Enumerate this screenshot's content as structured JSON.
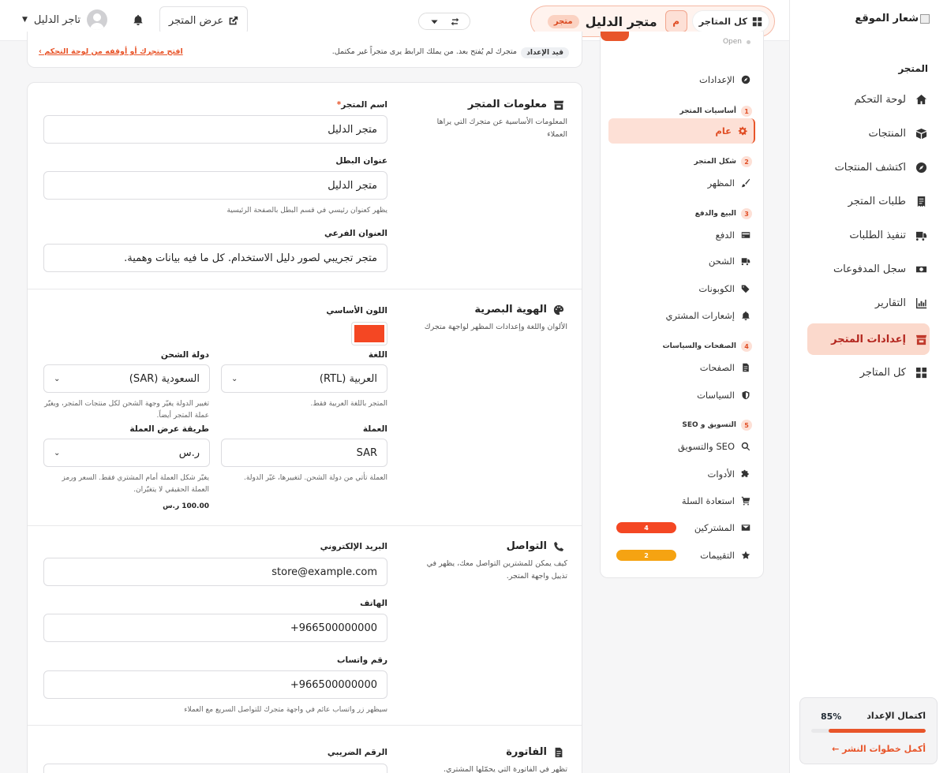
{
  "sidebar": {
    "logo_text": "شعار الموقع",
    "section": "المتجر",
    "items": [
      {
        "label": "لوحة التحكم",
        "icon": "home-icon"
      },
      {
        "label": "المنتجات",
        "icon": "box-icon"
      },
      {
        "label": "اكتشف المنتجات",
        "icon": "compass-icon"
      },
      {
        "label": "طلبات المتجر",
        "icon": "receipt-icon"
      },
      {
        "label": "تنفيذ الطلبات",
        "icon": "truck-icon"
      },
      {
        "label": "سجل المدفوعات",
        "icon": "money-icon"
      },
      {
        "label": "التقارير",
        "icon": "chart-icon"
      },
      {
        "label": "إعدادات المتجر",
        "icon": "store-icon",
        "active": true
      },
      {
        "label": "كل المتاجر",
        "icon": "grid-icon"
      }
    ],
    "progress": {
      "title": "اكتمال الإعداد",
      "percent_label": "85%",
      "value": 0.85,
      "link": "أكمل خطوات النشر ←"
    }
  },
  "topbar": {
    "all_stores": "كل المتاجر",
    "avatar_letter": "م",
    "store_name": "متجر الدليل",
    "store_badge": "متجر",
    "view_store": "عرض المتجر",
    "user_name": "تاجر الدليل"
  },
  "alert": {
    "badge": "قيد الإعداد",
    "text": "متجرك لم يُفتح بعد. من يملك الرابط يرى متجراً غير مكتمل.",
    "link": "افتح متجرك أو أوقفه من لوحة التحكم ›"
  },
  "settings_nav": {
    "status": "Open",
    "settings_label": "الإعدادات",
    "groups": [
      {
        "num": "1",
        "title": "أساسيات المتجر"
      },
      {
        "num": "2",
        "title": "شكل المتجر"
      },
      {
        "num": "3",
        "title": "البيع والدفع"
      },
      {
        "num": "4",
        "title": "الصفحات والسياسات"
      },
      {
        "num": "5",
        "title": "التسويق و SEO"
      }
    ],
    "items": {
      "general": "عام",
      "appearance": "المظهر",
      "payment": "الدفع",
      "shipping": "الشحن",
      "coupons": "الكوبونات",
      "notifications": "إشعارات المشتري",
      "pages": "الصفحات",
      "policies": "السياسات",
      "seo": "SEO والتسويق",
      "tools": "الأدوات",
      "cart_recovery": "استعادة السلة",
      "subscribers": "المشتركين",
      "subscribers_count": "4",
      "reviews": "التقييمات",
      "reviews_count": "2"
    }
  },
  "store_info": {
    "title": "معلومات المتجر",
    "desc": "المعلومات الأساسية عن متجرك التي يراها العملاء",
    "name_label": "اسم المتجر",
    "name_required": "*",
    "name_value": "متجر الدليل",
    "hero_label": "عنوان البطل",
    "hero_value": "متجر الدليل",
    "hero_hint": "يظهر كعنوان رئيسي في قسم البطل بالصفحة الرئيسية",
    "subtitle_label": "العنوان الفرعي",
    "subtitle_value": "متجر تجريبي لصور دليل الاستخدام. كل ما فيه بيانات وهمية."
  },
  "identity": {
    "title": "الهوية البصرية",
    "desc": "الألوان واللغة وإعدادات المظهر لواجهة متجرك",
    "primary_color_label": "اللون الأساسي",
    "primary_color": "#f44723",
    "language_label": "اللغة",
    "language_value": "العربية (RTL)",
    "language_hint": "المتجر باللغة العربية فقط.",
    "country_label": "دولة الشحن",
    "country_value": "السعودية (SAR)",
    "country_hint": "تغيير الدولة يغيّر وجهة الشحن لكل منتجات المتجر، ويغيّر عملة المتجر أيضاً.",
    "currency_label": "العملة",
    "currency_value": "SAR",
    "currency_hint": "العملة تأتي من دولة الشحن. لتغييرها، غيّر الدولة.",
    "display_label": "طريقة عرض العملة",
    "display_value": "ر.س",
    "display_hint": "يغيّر شكل العملة أمام المشتري فقط. السعر ورمز العملة الحقيقي لا يتغيّران.",
    "display_sample": "100.00 ر.س"
  },
  "contact": {
    "title": "التواصل",
    "desc": "كيف يمكن للمشترين التواصل معك، يظهر في تذييل واجهة المتجر.",
    "email_label": "البريد الإلكتروني",
    "email_value": "store@example.com",
    "phone_label": "الهاتف",
    "phone_value": "+966500000000",
    "whatsapp_label": "رقم واتساب",
    "whatsapp_value": "+966500000000",
    "whatsapp_hint": "سيظهر زر واتساب عائم في واجهة متجرك للتواصل السريع مع العملاء"
  },
  "invoice": {
    "title": "الفاتورة",
    "desc": "تظهر في الفاتورة التي يحمّلها المشتري.",
    "tax_label": "الرقم الضريبي"
  },
  "colors": {
    "accent": "#e8552a",
    "active_bg": "#fbd9cc"
  }
}
